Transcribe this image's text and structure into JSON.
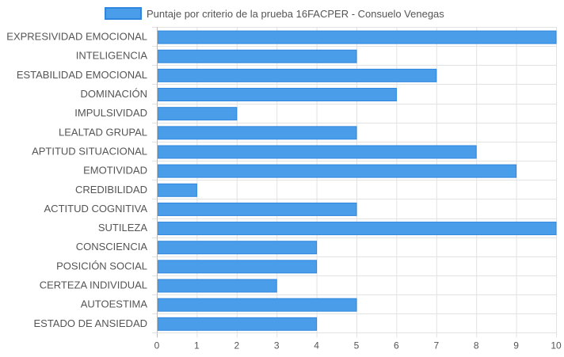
{
  "chart_data": {
    "type": "bar",
    "orientation": "horizontal",
    "categories": [
      "EXPRESIVIDAD EMOCIONAL",
      "INTELIGENCIA",
      "ESTABILIDAD EMOCIONAL",
      "DOMINACIÓN",
      "IMPULSIVIDAD",
      "LEALTAD GRUPAL",
      "APTITUD SITUACIONAL",
      "EMOTIVIDAD",
      "CREDIBILIDAD",
      "ACTITUD COGNITIVA",
      "SUTILEZA",
      "CONSCIENCIA",
      "POSICIÓN SOCIAL",
      "CERTEZA INDIVIDUAL",
      "AUTOESTIMA",
      "ESTADO DE ANSIEDAD"
    ],
    "series": [
      {
        "name": "Puntaje por criterio de la prueba 16FACPER - Consuelo Venegas",
        "values": [
          10,
          5,
          7,
          6,
          2,
          5,
          8,
          9,
          1,
          5,
          10,
          4,
          4,
          3,
          5,
          4
        ],
        "color": "#4a9de9",
        "border_color": "#2e86de"
      }
    ],
    "x_ticks": [
      "0",
      "1",
      "2",
      "3",
      "4",
      "5",
      "6",
      "7",
      "8",
      "9",
      "10"
    ],
    "xlim": [
      0,
      10
    ],
    "grid": true,
    "legend_position": "top"
  }
}
